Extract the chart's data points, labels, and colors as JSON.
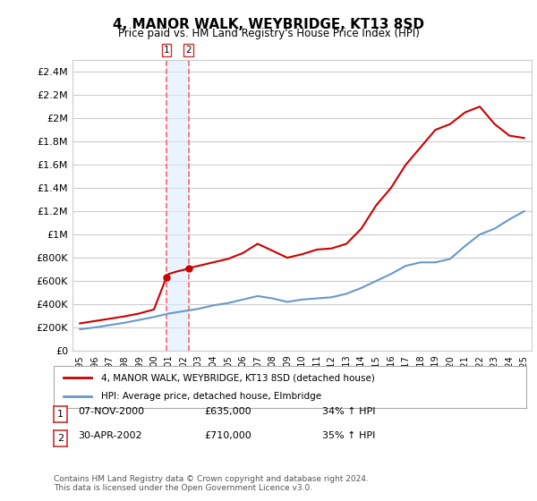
{
  "title": "4, MANOR WALK, WEYBRIDGE, KT13 8SD",
  "subtitle": "Price paid vs. HM Land Registry's House Price Index (HPI)",
  "footer": "Contains HM Land Registry data © Crown copyright and database right 2024.\nThis data is licensed under the Open Government Licence v3.0.",
  "legend_label_red": "4, MANOR WALK, WEYBRIDGE, KT13 8SD (detached house)",
  "legend_label_blue": "HPI: Average price, detached house, Elmbridge",
  "transactions": [
    {
      "num": 1,
      "date": "07-NOV-2000",
      "price": "£635,000",
      "hpi": "34% ↑ HPI",
      "year": 2000.85
    },
    {
      "num": 2,
      "date": "30-APR-2002",
      "price": "£710,000",
      "hpi": "35% ↑ HPI",
      "year": 2002.33
    }
  ],
  "ylim": [
    0,
    2500000
  ],
  "yticks": [
    0,
    200000,
    400000,
    600000,
    800000,
    1000000,
    1200000,
    1400000,
    1600000,
    1800000,
    2000000,
    2200000,
    2400000
  ],
  "ytick_labels": [
    "£0",
    "£200K",
    "£400K",
    "£600K",
    "£800K",
    "£1M",
    "£1.2M",
    "£1.4M",
    "£1.6M",
    "£1.8M",
    "£2M",
    "£2.2M",
    "£2.4M"
  ],
  "red_color": "#cc0000",
  "blue_color": "#6699cc",
  "vline_color": "#ff6666",
  "shade_color": "#ddeeff",
  "bg_color": "#ffffff",
  "grid_color": "#cccccc",
  "hpi_years": [
    1995,
    1996,
    1997,
    1998,
    1999,
    2000,
    2001,
    2002,
    2003,
    2004,
    2005,
    2006,
    2007,
    2008,
    2009,
    2010,
    2011,
    2012,
    2013,
    2014,
    2015,
    2016,
    2017,
    2018,
    2019,
    2020,
    2021,
    2022,
    2023,
    2024,
    2025
  ],
  "hpi_values": [
    185000,
    200000,
    220000,
    240000,
    265000,
    290000,
    320000,
    340000,
    360000,
    390000,
    410000,
    440000,
    470000,
    450000,
    420000,
    440000,
    450000,
    460000,
    490000,
    540000,
    600000,
    660000,
    730000,
    760000,
    760000,
    790000,
    900000,
    1000000,
    1050000,
    1130000,
    1200000
  ],
  "red_years": [
    1995,
    1996,
    1997,
    1998,
    1999,
    2000,
    2000.85,
    2001,
    2001.5,
    2002,
    2002.33,
    2003,
    2004,
    2005,
    2006,
    2007,
    2008,
    2009,
    2010,
    2011,
    2012,
    2013,
    2014,
    2015,
    2016,
    2017,
    2018,
    2019,
    2020,
    2021,
    2022,
    2023,
    2024,
    2025
  ],
  "red_values": [
    235000,
    255000,
    275000,
    295000,
    320000,
    355000,
    635000,
    660000,
    680000,
    695000,
    710000,
    730000,
    760000,
    790000,
    840000,
    920000,
    860000,
    800000,
    830000,
    870000,
    880000,
    920000,
    1050000,
    1250000,
    1400000,
    1600000,
    1750000,
    1900000,
    1950000,
    2050000,
    2100000,
    1950000,
    1850000,
    1830000
  ]
}
